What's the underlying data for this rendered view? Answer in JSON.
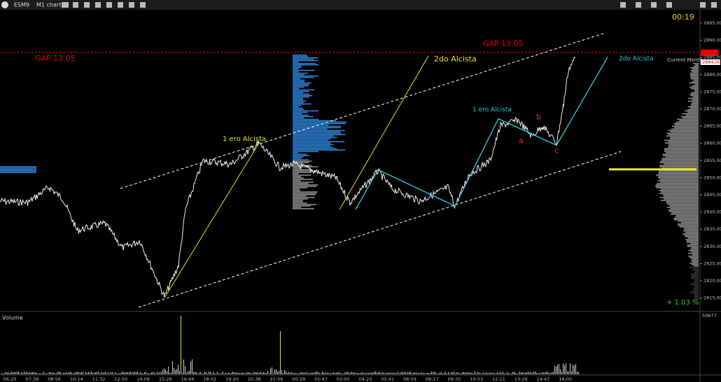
{
  "toolbar": {
    "symbol": "ESM9",
    "chart": "M1 chart",
    "timer": "00:19"
  },
  "price_axis": [
    "2895,00",
    "2890,00",
    "2885,00",
    "2880,00",
    "2875,00",
    "2870,00",
    "2865,00",
    "2860,00",
    "2855,00",
    "2850,00",
    "2845,00",
    "2840,00",
    "2835,00",
    "2830,00",
    "2825,00",
    "2820,00",
    "2815,00"
  ],
  "time_axis": [
    "06:20",
    "07:38",
    "08:56",
    "10:14",
    "11:32",
    "12:50",
    "14:08",
    "15:26",
    "16:44",
    "18:02",
    "19:20",
    "20:38",
    "21:56",
    "00:29",
    "01:47",
    "03:05",
    "04:23",
    "05:41",
    "06:59",
    "08:17",
    "09:35",
    "10:53",
    "12:11",
    "13:29",
    "14:47",
    "16:05"
  ],
  "annotations": {
    "gap_right": "GAP 13.05",
    "gap_left": "GAP 13.05",
    "second_yellow": "2do Alcista",
    "second_cyan": "2do Alcista",
    "first_yellow": "1 ero Alcista",
    "first_cyan": "1 ero Alcista",
    "a": "a",
    "b": "b",
    "c": "c",
    "current_month": "Current Month",
    "change": "+ 1.03 %",
    "price_tag": "2884,00"
  },
  "volume": {
    "label": "Volume",
    "max": "50677"
  }
}
